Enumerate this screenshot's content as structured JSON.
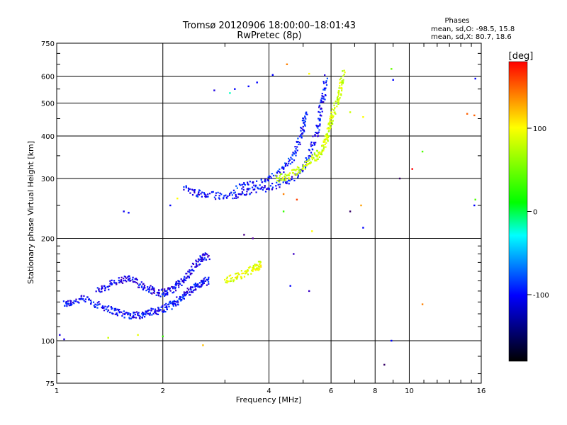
{
  "chart_data": {
    "type": "scatter",
    "title": "Tromsø 20120906 18:00:00–18:01:43",
    "subtitle": "RwPretec (8p)",
    "xlabel": "Frequency [MHz]",
    "ylabel": "Stationary phase Virtual Height [km]",
    "x_scale": "log",
    "y_scale": "log",
    "xlim": [
      1,
      16
    ],
    "ylim": [
      75,
      750
    ],
    "x_ticks": [
      1,
      2,
      4,
      6,
      8,
      10,
      16
    ],
    "y_ticks": [
      75,
      100,
      200,
      300,
      400,
      500,
      600,
      750
    ],
    "grid": true,
    "phase_info": {
      "heading": "Phases",
      "line_o": "mean, sd,O: -98.5, 15.8",
      "line_x": "mean, sd,X:  80.7, 18.6"
    },
    "colorbar": {
      "label": "[deg]",
      "range": [
        -180,
        180
      ],
      "ticks": [
        100,
        0,
        -100
      ],
      "colors": [
        "#ff0000",
        "#ffff00",
        "#00ff00",
        "#00ffff",
        "#0000ff",
        "#000000"
      ]
    },
    "traces": [
      {
        "name_hint": "lower O-trace",
        "phase": -100,
        "points": [
          [
            1.05,
            128
          ],
          [
            1.1,
            130
          ],
          [
            1.2,
            133
          ],
          [
            1.3,
            128
          ],
          [
            1.4,
            124
          ],
          [
            1.5,
            121
          ],
          [
            1.6,
            119
          ],
          [
            1.7,
            119
          ],
          [
            1.8,
            120
          ],
          [
            1.9,
            122
          ],
          [
            2.0,
            124
          ],
          [
            2.1,
            127
          ],
          [
            2.2,
            131
          ],
          [
            2.3,
            136
          ],
          [
            2.4,
            141
          ],
          [
            2.5,
            145
          ],
          [
            2.6,
            148
          ],
          [
            2.7,
            151
          ]
        ]
      },
      {
        "name_hint": "mid O-trace",
        "phase": -105,
        "points": [
          [
            1.3,
            140
          ],
          [
            1.4,
            145
          ],
          [
            1.5,
            150
          ],
          [
            1.6,
            152
          ],
          [
            1.7,
            148
          ],
          [
            1.8,
            143
          ],
          [
            1.9,
            140
          ],
          [
            2.0,
            138
          ],
          [
            2.1,
            140
          ],
          [
            2.2,
            146
          ],
          [
            2.3,
            150
          ],
          [
            2.4,
            160
          ],
          [
            2.5,
            170
          ],
          [
            2.6,
            176
          ],
          [
            2.7,
            178
          ]
        ]
      },
      {
        "name_hint": "upper O-trace",
        "phase": -100,
        "points": [
          [
            2.3,
            280
          ],
          [
            2.5,
            272
          ],
          [
            2.7,
            268
          ],
          [
            3.0,
            266
          ],
          [
            3.3,
            270
          ],
          [
            3.6,
            276
          ],
          [
            4.0,
            283
          ],
          [
            4.4,
            292
          ],
          [
            4.8,
            305
          ],
          [
            5.1,
            330
          ],
          [
            5.3,
            370
          ],
          [
            5.5,
            420
          ],
          [
            5.6,
            470
          ],
          [
            5.7,
            520
          ],
          [
            5.8,
            600
          ]
        ]
      },
      {
        "name_hint": "upper O-trace 2",
        "phase": -95,
        "points": [
          [
            3.2,
            280
          ],
          [
            3.6,
            288
          ],
          [
            4.0,
            298
          ],
          [
            4.4,
            320
          ],
          [
            4.7,
            350
          ],
          [
            4.9,
            390
          ],
          [
            5.0,
            430
          ],
          [
            5.1,
            470
          ]
        ]
      },
      {
        "name_hint": "X-trace",
        "phase": 80,
        "points": [
          [
            4.2,
            300
          ],
          [
            4.5,
            305
          ],
          [
            4.8,
            315
          ],
          [
            5.1,
            330
          ],
          [
            5.4,
            345
          ],
          [
            5.6,
            360
          ],
          [
            5.8,
            385
          ],
          [
            5.9,
            410
          ],
          [
            6.0,
            440
          ],
          [
            6.1,
            470
          ],
          [
            6.3,
            520
          ],
          [
            6.4,
            560
          ],
          [
            6.5,
            620
          ]
        ]
      },
      {
        "name_hint": "low X-trace",
        "phase": 90,
        "points": [
          [
            3.0,
            150
          ],
          [
            3.2,
            153
          ],
          [
            3.4,
            158
          ],
          [
            3.6,
            162
          ],
          [
            3.7,
            165
          ],
          [
            3.8,
            170
          ]
        ]
      }
    ],
    "scatter_points": [
      {
        "x": 1.02,
        "y": 104,
        "phase": -110
      },
      {
        "x": 1.05,
        "y": 101,
        "phase": -110
      },
      {
        "x": 1.55,
        "y": 240,
        "phase": -105
      },
      {
        "x": 1.6,
        "y": 238,
        "phase": -100
      },
      {
        "x": 1.4,
        "y": 102,
        "phase": 80
      },
      {
        "x": 1.7,
        "y": 104,
        "phase": 90
      },
      {
        "x": 2.0,
        "y": 103,
        "phase": 20
      },
      {
        "x": 2.6,
        "y": 97,
        "phase": 120
      },
      {
        "x": 2.1,
        "y": 250,
        "phase": -100
      },
      {
        "x": 2.2,
        "y": 262,
        "phase": 100
      },
      {
        "x": 2.8,
        "y": 545,
        "phase": -110
      },
      {
        "x": 3.1,
        "y": 535,
        "phase": -30
      },
      {
        "x": 3.2,
        "y": 550,
        "phase": -100
      },
      {
        "x": 3.5,
        "y": 560,
        "phase": -100
      },
      {
        "x": 3.7,
        "y": 575,
        "phase": -100
      },
      {
        "x": 4.1,
        "y": 605,
        "phase": -100
      },
      {
        "x": 4.5,
        "y": 650,
        "phase": 140
      },
      {
        "x": 5.2,
        "y": 610,
        "phase": 100
      },
      {
        "x": 4.4,
        "y": 270,
        "phase": 140
      },
      {
        "x": 4.8,
        "y": 260,
        "phase": 160
      },
      {
        "x": 4.7,
        "y": 180,
        "phase": -120
      },
      {
        "x": 4.4,
        "y": 240,
        "phase": 20
      },
      {
        "x": 4.4,
        "y": 320,
        "phase": -100
      },
      {
        "x": 5.3,
        "y": 210,
        "phase": 100
      },
      {
        "x": 5.2,
        "y": 140,
        "phase": -120
      },
      {
        "x": 4.6,
        "y": 145,
        "phase": -100
      },
      {
        "x": 6.8,
        "y": 240,
        "phase": -150
      },
      {
        "x": 7.3,
        "y": 250,
        "phase": 130
      },
      {
        "x": 7.4,
        "y": 215,
        "phase": -100
      },
      {
        "x": 7.4,
        "y": 455,
        "phase": 100
      },
      {
        "x": 6.8,
        "y": 470,
        "phase": 80
      },
      {
        "x": 8.9,
        "y": 630,
        "phase": 40
      },
      {
        "x": 9.0,
        "y": 585,
        "phase": -100
      },
      {
        "x": 9.4,
        "y": 300,
        "phase": -150
      },
      {
        "x": 10.2,
        "y": 320,
        "phase": 180
      },
      {
        "x": 10.9,
        "y": 360,
        "phase": 30
      },
      {
        "x": 10.9,
        "y": 128,
        "phase": 140
      },
      {
        "x": 8.5,
        "y": 85,
        "phase": -150
      },
      {
        "x": 8.9,
        "y": 100,
        "phase": -100
      },
      {
        "x": 14.6,
        "y": 465,
        "phase": 150
      },
      {
        "x": 15.3,
        "y": 460,
        "phase": 150
      },
      {
        "x": 15.4,
        "y": 590,
        "phase": -100
      },
      {
        "x": 15.4,
        "y": 260,
        "phase": 30
      },
      {
        "x": 15.3,
        "y": 250,
        "phase": -100
      },
      {
        "x": 3.4,
        "y": 205,
        "phase": -140
      },
      {
        "x": 3.6,
        "y": 200,
        "phase": -130
      }
    ]
  }
}
